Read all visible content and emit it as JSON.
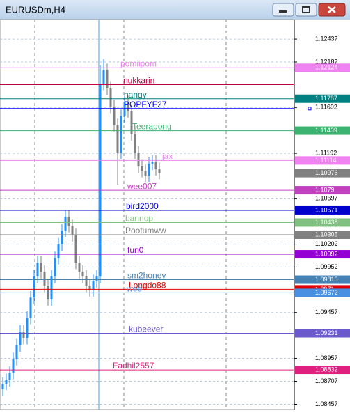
{
  "window_title": "EURUSDm,H4",
  "chart_data": {
    "type": "candlestick",
    "up_color": "#1e90ff",
    "down_color": "#808080",
    "open": [
      1.0862,
      1.0868,
      1.0872,
      1.088,
      1.0895,
      1.091,
      1.0925,
      1.0918,
      1.094,
      1.0962,
      1.0985,
      1.1,
      1.099,
      1.0975,
      1.096,
      1.0985,
      1.1005,
      1.102,
      1.1035,
      1.105,
      1.104,
      1.103,
      1.1,
      1.099,
      1.0985,
      1.0975,
      1.097,
      1.098,
      1.0985,
      1.1195,
      1.121,
      1.119,
      1.117,
      1.115,
      1.112,
      1.116,
      1.1175,
      1.1165,
      1.114,
      1.112,
      1.1105,
      1.11,
      1.1095,
      1.1108,
      1.111,
      1.1102
    ],
    "high": [
      1.0875,
      1.0879,
      1.0887,
      1.0902,
      1.0917,
      1.0932,
      1.0932,
      1.0947,
      1.0969,
      1.0992,
      1.1007,
      1.1007,
      1.0997,
      1.0982,
      1.0992,
      1.1012,
      1.1027,
      1.1042,
      1.1057,
      1.1057,
      1.1047,
      1.1037,
      1.1007,
      1.0997,
      1.0992,
      1.0982,
      1.0987,
      1.0992,
      1.1215,
      1.1222,
      1.1217,
      1.1197,
      1.1177,
      1.1157,
      1.1167,
      1.1182,
      1.1182,
      1.1172,
      1.1147,
      1.1127,
      1.1112,
      1.1107,
      1.1115,
      1.1117,
      1.1117,
      1.1109
    ],
    "low": [
      1.0855,
      1.0861,
      1.0865,
      1.0873,
      1.0888,
      1.0903,
      1.0911,
      1.0911,
      1.0933,
      1.0955,
      1.0978,
      1.0983,
      1.0968,
      1.0953,
      1.0953,
      1.0978,
      1.0998,
      1.1013,
      1.1028,
      1.1033,
      1.1023,
      1.0993,
      1.0983,
      1.0978,
      1.0968,
      1.0963,
      1.0963,
      1.0973,
      1.0978,
      1.1188,
      1.1183,
      1.1163,
      1.1143,
      1.1085,
      1.1113,
      1.1153,
      1.1158,
      1.1133,
      1.1113,
      1.1098,
      1.1093,
      1.1088,
      1.1088,
      1.1101,
      1.1095,
      1.1091
    ],
    "close": [
      1.0868,
      1.0872,
      1.088,
      1.0895,
      1.091,
      1.0925,
      1.0918,
      1.094,
      1.0962,
      1.0985,
      1.1,
      1.099,
      1.0975,
      1.096,
      1.0985,
      1.1005,
      1.102,
      1.1035,
      1.105,
      1.104,
      1.103,
      1.1,
      1.099,
      1.0985,
      1.0975,
      1.097,
      1.098,
      1.0985,
      1.1195,
      1.121,
      1.119,
      1.117,
      1.115,
      1.112,
      1.116,
      1.1175,
      1.1165,
      1.114,
      1.112,
      1.1105,
      1.11,
      1.1095,
      1.1108,
      1.111,
      1.1102,
      1.1098
    ],
    "ylim": [
      1.084,
      1.1265
    ],
    "yticks": [
      1.12437,
      1.12187,
      1.11692,
      1.11192,
      1.10697,
      1.10202,
      1.09952,
      1.09457,
      1.08957,
      1.08707,
      1.08457
    ],
    "grid": true,
    "levels": [
      {
        "name": "pomiipom",
        "price": 1.12124,
        "color": "#ee82ee",
        "show_price": true
      },
      {
        "name": "nukkarin",
        "price": 1.1194,
        "color": "#c00040",
        "show_price": false
      },
      {
        "name": "nangy",
        "price": 1.11787,
        "color": "#008080",
        "show_price": true
      },
      {
        "name": "POPFYF27",
        "price": 1.1168,
        "color": "#0000ff",
        "show_price": false
      },
      {
        "name": "Teerapong",
        "price": 1.11439,
        "color": "#3cb371",
        "show_price": true
      },
      {
        "name": "jax",
        "price": 1.11114,
        "color": "#ee82ee",
        "show_price": true
      },
      {
        "name": "wee007",
        "price": 1.1079,
        "color": "#c040c0",
        "show_price": true
      },
      {
        "name": "bird2000",
        "price": 1.10571,
        "color": "#0000cd",
        "show_price": true
      },
      {
        "name": "bannop",
        "price": 1.10438,
        "color": "#80c080",
        "show_price": true
      },
      {
        "name": "Pootumww",
        "price": 1.10305,
        "color": "#808080",
        "show_price": true
      },
      {
        "name": "fun0",
        "price": 1.10092,
        "color": "#9400d3",
        "show_price": true
      },
      {
        "name": "sm2honey",
        "price": 1.09815,
        "color": "#4682b4",
        "show_price": true
      },
      {
        "name": "Longdo88",
        "price": 1.0971,
        "color": "#e00000",
        "show_price": true
      },
      {
        "name": "wee",
        "price": 1.09672,
        "color": "#4a90e2",
        "show_price": true
      },
      {
        "name": "kubeever",
        "price": 1.09231,
        "color": "#6a5acd",
        "show_price": true
      },
      {
        "name": "Fadhil2557",
        "price": 1.08832,
        "color": "#e0207f",
        "show_price": true
      }
    ],
    "bid": {
      "price": 1.10976,
      "color": "#808080"
    }
  }
}
